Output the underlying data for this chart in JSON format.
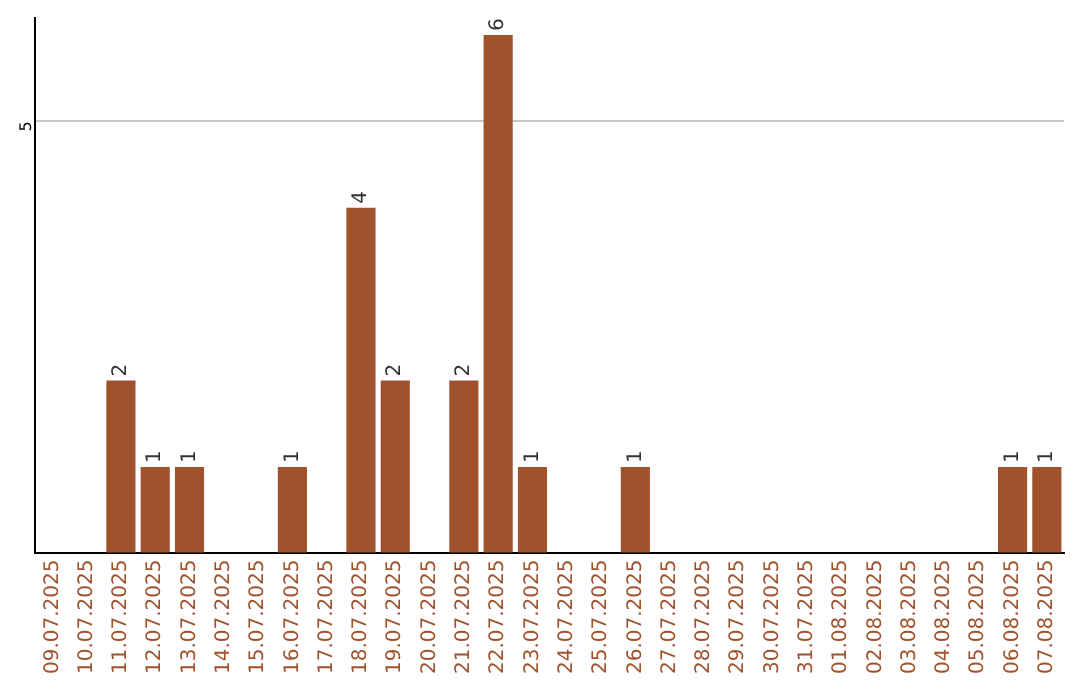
{
  "chart_data": {
    "type": "bar",
    "categories": [
      "09.07.2025",
      "10.07.2025",
      "11.07.2025",
      "12.07.2025",
      "13.07.2025",
      "14.07.2025",
      "15.07.2025",
      "16.07.2025",
      "17.07.2025",
      "18.07.2025",
      "19.07.2025",
      "20.07.2025",
      "21.07.2025",
      "22.07.2025",
      "23.07.2025",
      "24.07.2025",
      "25.07.2025",
      "26.07.2025",
      "27.07.2025",
      "28.07.2025",
      "29.07.2025",
      "30.07.2025",
      "31.07.2025",
      "01.08.2025",
      "02.08.2025",
      "03.08.2025",
      "04.08.2025",
      "05.08.2025",
      "06.08.2025",
      "07.08.2025"
    ],
    "values": [
      0,
      0,
      2,
      1,
      1,
      0,
      0,
      1,
      0,
      4,
      2,
      0,
      2,
      6,
      1,
      0,
      0,
      1,
      0,
      0,
      0,
      0,
      0,
      0,
      0,
      0,
      0,
      0,
      1,
      1
    ],
    "value_labels": [
      null,
      null,
      "2",
      "1",
      "1",
      null,
      null,
      "1",
      null,
      "4",
      "2",
      null,
      "2",
      "6",
      "1",
      null,
      null,
      "1",
      null,
      null,
      null,
      null,
      null,
      null,
      null,
      null,
      null,
      null,
      "1",
      "1"
    ],
    "color": "#a0522d",
    "ylim": [
      0,
      6.2
    ],
    "yticks": [
      {
        "value": 0,
        "label": null
      },
      5
    ],
    "grid": "y",
    "legend": false
  }
}
